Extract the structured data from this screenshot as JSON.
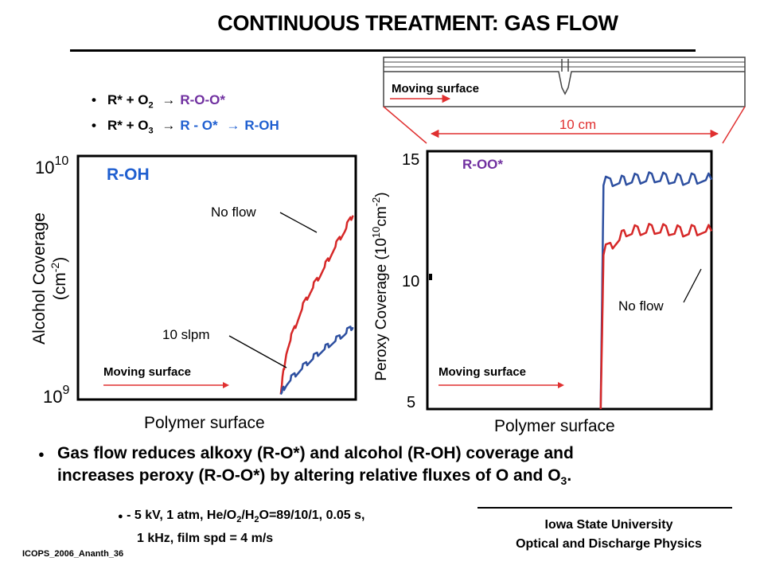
{
  "title": "CONTINUOUS TREATMENT: GAS FLOW",
  "reactions": [
    {
      "bullet": "•",
      "lhs": "R* + O",
      "sub": "2",
      "arrow": "→",
      "product": "R-O-O*",
      "product2": "",
      "arrow2": ""
    },
    {
      "bullet": "•",
      "lhs": "R* + O",
      "sub": "3",
      "arrow": "→",
      "product": "R - O*",
      "arrow2": "→",
      "product2": "R-OH"
    }
  ],
  "diagram": {
    "moving_surface_label": "Moving surface",
    "scale_label": "10 cm"
  },
  "left_chart": {
    "series_label": "R-OH",
    "ylabel_line1": "Alcohol Coverage",
    "ylabel_line2": "(cm",
    "ylabel_sup": "-2",
    "ylabel_close": ")",
    "ytick_top_base": "10",
    "ytick_top_exp": "10",
    "ytick_bottom_base": "10",
    "ytick_bottom_exp": "9",
    "xlabel": "Polymer surface",
    "annot_noflow": "No flow",
    "annot_10slpm": "10 slpm",
    "moving_surface": "Moving surface"
  },
  "right_chart": {
    "series_label": "R-OO*",
    "ylabel_a": "Peroxy Coverage (10",
    "ylabel_sup1": "10",
    "ylabel_b": "cm",
    "ylabel_sup2": "-2",
    "ylabel_c": ")",
    "yticks": [
      "15",
      "10",
      "5"
    ],
    "xlabel": "Polymer surface",
    "annot_noflow": "No flow",
    "moving_surface": "Moving surface"
  },
  "chart_data": [
    {
      "type": "line",
      "title": "R-OH",
      "ylabel": "Alcohol Coverage (cm-2)",
      "xlabel": "Polymer surface",
      "yscale": "log",
      "ylim": [
        1000000000,
        10000000000
      ],
      "series": [
        {
          "name": "No flow",
          "color": "#d62828",
          "x": [
            0.73,
            0.75,
            0.78,
            0.81,
            0.84,
            0.87,
            0.9,
            0.93,
            0.96,
            0.99
          ],
          "y": [
            1050000000,
            1550000000,
            1950000000,
            2400000000,
            2800000000,
            3200000000,
            3700000000,
            4300000000,
            4900000000,
            5700000000
          ]
        },
        {
          "name": "10 slpm",
          "color": "#2d4fa0",
          "x": [
            0.73,
            0.75,
            0.78,
            0.81,
            0.84,
            0.87,
            0.9,
            0.93,
            0.96,
            0.99
          ],
          "y": [
            1050000000,
            1150000000,
            1250000000,
            1350000000,
            1450000000,
            1550000000,
            1650000000,
            1750000000,
            1850000000,
            1980000000
          ]
        }
      ]
    },
    {
      "type": "line",
      "title": "R-OO*",
      "ylabel": "Peroxy Coverage (10^10 cm-2)",
      "xlabel": "Polymer surface",
      "ylim": [
        5,
        15
      ],
      "series": [
        {
          "name": "10 slpm",
          "color": "#2d4fa0",
          "x": [
            0.61,
            0.62,
            0.7,
            0.8,
            0.9,
            1.0
          ],
          "y": [
            5,
            13.7,
            13.8,
            13.9,
            13.8,
            13.9
          ]
        },
        {
          "name": "No flow",
          "color": "#d62828",
          "x": [
            0.61,
            0.62,
            0.7,
            0.8,
            0.9,
            1.0
          ],
          "y": [
            5,
            11.0,
            11.8,
            11.9,
            11.8,
            11.9
          ]
        }
      ]
    }
  ],
  "conclusion": {
    "bullet": "●",
    "line1": "Gas flow reduces alkoxy (R-O*) and alcohol (R-OH) coverage and",
    "line2a": "increases peroxy (R-O-O*) by altering relative fluxes of O and O",
    "line2sub": "3",
    "line2end": "."
  },
  "params": {
    "bullet": "●",
    "line1a": " - 5 kV, 1 atm,  He/O",
    "s1": "2",
    "line1b": "/H",
    "s2": "2",
    "line1c": "O=89/10/1, 0.05 s,",
    "line2": "1 kHz, film spd = 4 m/s"
  },
  "footer": {
    "line1": "Iowa State University",
    "line2": "Optical and Discharge Physics"
  },
  "slide_id": "ICOPS_2006_Ananth_36",
  "colors": {
    "red": "#d62828",
    "blue": "#2d4fa0",
    "purple": "#7030a0",
    "cyan_blue": "#1f5fd0"
  }
}
